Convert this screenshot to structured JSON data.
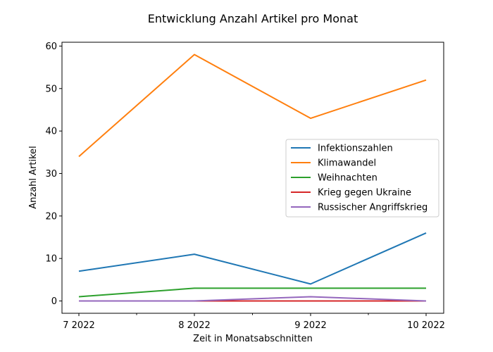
{
  "chart_data": {
    "type": "line",
    "title": "Entwicklung Anzahl Artikel pro Monat",
    "xlabel": "Zeit in Monatsabschnitten",
    "ylabel": "Anzahl Artikel",
    "x": [
      "7 2022",
      "8 2022",
      "9 2022",
      "10 2022"
    ],
    "ylim": [
      -2.9,
      60.9
    ],
    "yticks": [
      0,
      10,
      20,
      30,
      40,
      50,
      60
    ],
    "grid": false,
    "legend_position": "center-right",
    "series": [
      {
        "name": "Infektionszahlen",
        "color": "#1f77b4",
        "values": [
          7,
          11,
          4,
          16
        ]
      },
      {
        "name": "Klimawandel",
        "color": "#ff7f0e",
        "values": [
          34,
          58,
          43,
          52
        ]
      },
      {
        "name": "Weihnachten",
        "color": "#2ca02c",
        "values": [
          1,
          3,
          3,
          3
        ]
      },
      {
        "name": "Krieg gegen Ukraine",
        "color": "#d62728",
        "values": [
          0,
          0,
          0,
          0
        ]
      },
      {
        "name": "Russischer Angriffskrieg",
        "color": "#9467bd",
        "values": [
          0,
          0,
          1,
          0
        ]
      }
    ]
  }
}
